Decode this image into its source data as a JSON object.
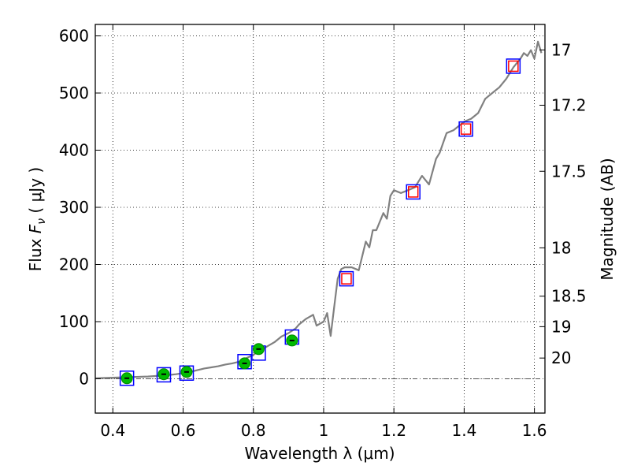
{
  "chart_data": {
    "type": "scatter",
    "title": "",
    "xlabel": "Wavelength  λ (μm)",
    "ylabel": "Flux  F_ν  ( μJy )",
    "ylabel_parts": {
      "pre": "Flux  ",
      "sym": "F",
      "sub": "ν",
      "post": "  ( μJy )"
    },
    "y2label": "Magnitude (AB)",
    "xlim": [
      0.35,
      1.63
    ],
    "ylim": [
      -60,
      620
    ],
    "grid": true,
    "xticks": [
      {
        "value": 0.4,
        "label": "0.4"
      },
      {
        "value": 0.6,
        "label": "0.6"
      },
      {
        "value": 0.8,
        "label": "0.8"
      },
      {
        "value": 1.0,
        "label": "1"
      },
      {
        "value": 1.2,
        "label": "1.2"
      },
      {
        "value": 1.4,
        "label": "1.4"
      },
      {
        "value": 1.6,
        "label": "1.6"
      }
    ],
    "yticks": [
      {
        "value": 0,
        "label": "0"
      },
      {
        "value": 100,
        "label": "100"
      },
      {
        "value": 200,
        "label": "200"
      },
      {
        "value": 300,
        "label": "300"
      },
      {
        "value": 400,
        "label": "400"
      },
      {
        "value": 500,
        "label": "500"
      },
      {
        "value": 600,
        "label": "600"
      }
    ],
    "y2ticks": [
      {
        "mag": 17,
        "label": "17"
      },
      {
        "mag": 17.2,
        "label": "17.2"
      },
      {
        "mag": 17.5,
        "label": "17.5"
      },
      {
        "mag": 18,
        "label": "18"
      },
      {
        "mag": 18.5,
        "label": "18.5"
      },
      {
        "mag": 19,
        "label": "19"
      },
      {
        "mag": 20,
        "label": "20"
      }
    ],
    "series": [
      {
        "kind": "spectrum",
        "color": "#808080",
        "x": [
          0.35,
          0.4,
          0.45,
          0.5,
          0.55,
          0.58,
          0.6,
          0.62,
          0.64,
          0.66,
          0.68,
          0.7,
          0.72,
          0.74,
          0.76,
          0.78,
          0.8,
          0.82,
          0.84,
          0.86,
          0.88,
          0.9,
          0.92,
          0.93,
          0.95,
          0.97,
          0.98,
          1.0,
          1.01,
          1.02,
          1.03,
          1.04,
          1.05,
          1.06,
          1.08,
          1.1,
          1.12,
          1.13,
          1.14,
          1.15,
          1.17,
          1.18,
          1.19,
          1.2,
          1.22,
          1.24,
          1.26,
          1.28,
          1.3,
          1.32,
          1.33,
          1.35,
          1.37,
          1.38,
          1.4,
          1.42,
          1.44,
          1.46,
          1.48,
          1.5,
          1.52,
          1.54,
          1.56,
          1.57,
          1.58,
          1.59,
          1.6,
          1.61,
          1.62
        ],
        "y": [
          1,
          2,
          3,
          4,
          6,
          8,
          10,
          12,
          15,
          18,
          20,
          22,
          25,
          27,
          30,
          36,
          42,
          50,
          57,
          64,
          74,
          80,
          88,
          95,
          105,
          112,
          93,
          100,
          115,
          75,
          125,
          175,
          192,
          195,
          195,
          190,
          240,
          230,
          260,
          260,
          290,
          280,
          320,
          330,
          325,
          330,
          335,
          355,
          340,
          385,
          395,
          430,
          435,
          440,
          450,
          455,
          465,
          490,
          500,
          510,
          525,
          545,
          560,
          570,
          565,
          575,
          560,
          590,
          570
        ]
      },
      {
        "kind": "blue-squares",
        "color": "#0000ff",
        "x": [
          0.44,
          0.545,
          0.61,
          0.775,
          0.815,
          0.91,
          1.065,
          1.255,
          1.405,
          1.54
        ],
        "y": [
          1,
          7,
          10,
          30,
          45,
          73,
          175,
          327,
          437,
          547
        ]
      },
      {
        "kind": "red-squares",
        "color": "#ff0000",
        "x": [
          1.065,
          1.255,
          1.405,
          1.54
        ],
        "y": [
          175,
          327,
          437,
          547
        ]
      },
      {
        "kind": "green-points",
        "color": "#00bb00",
        "x": [
          0.44,
          0.545,
          0.61,
          0.775,
          0.815,
          0.91
        ],
        "y": [
          1,
          8,
          12,
          27,
          52,
          67
        ]
      }
    ]
  }
}
